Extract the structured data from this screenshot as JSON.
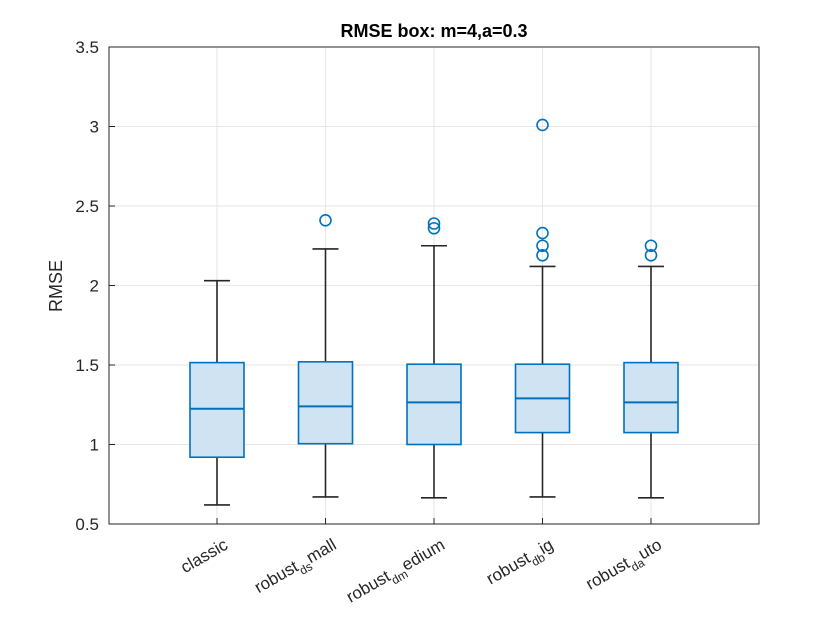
{
  "chart_data": {
    "type": "box",
    "title": "RMSE box: m=4,a=0.3",
    "xlabel": "",
    "ylabel": "RMSE",
    "ylim": [
      0.5,
      3.5
    ],
    "yticks": [
      "0.5",
      "1",
      "1.5",
      "2",
      "2.5",
      "3",
      "3.5"
    ],
    "grid": true,
    "categories": [
      {
        "base": "classic",
        "sub": "",
        "rest": ""
      },
      {
        "base": "robust",
        "sub": "ds",
        "rest": "mall"
      },
      {
        "base": "robust",
        "sub": "dm",
        "rest": "edium"
      },
      {
        "base": "robust",
        "sub": "db",
        "rest": "ig"
      },
      {
        "base": "robust",
        "sub": "da",
        "rest": "uto"
      }
    ],
    "boxes": [
      {
        "whisker_low": 0.62,
        "q1": 0.92,
        "median": 1.225,
        "q3": 1.515,
        "whisker_high": 2.03,
        "outliers": []
      },
      {
        "whisker_low": 0.67,
        "q1": 1.005,
        "median": 1.24,
        "q3": 1.52,
        "whisker_high": 2.23,
        "outliers": [
          2.41
        ]
      },
      {
        "whisker_low": 0.665,
        "q1": 1.0,
        "median": 1.265,
        "q3": 1.505,
        "whisker_high": 2.25,
        "outliers": [
          2.36,
          2.39
        ]
      },
      {
        "whisker_low": 0.67,
        "q1": 1.075,
        "median": 1.29,
        "q3": 1.505,
        "whisker_high": 2.12,
        "outliers": [
          2.19,
          2.25,
          2.33,
          3.01
        ]
      },
      {
        "whisker_low": 0.665,
        "q1": 1.075,
        "median": 1.265,
        "q3": 1.515,
        "whisker_high": 2.12,
        "outliers": [
          2.19,
          2.25
        ]
      }
    ],
    "colors": {
      "box": "#0072BD",
      "box_fill": "#cfe3f2",
      "whisker": "#262626",
      "grid": "#e6e6e6",
      "axis": "#262626"
    }
  }
}
